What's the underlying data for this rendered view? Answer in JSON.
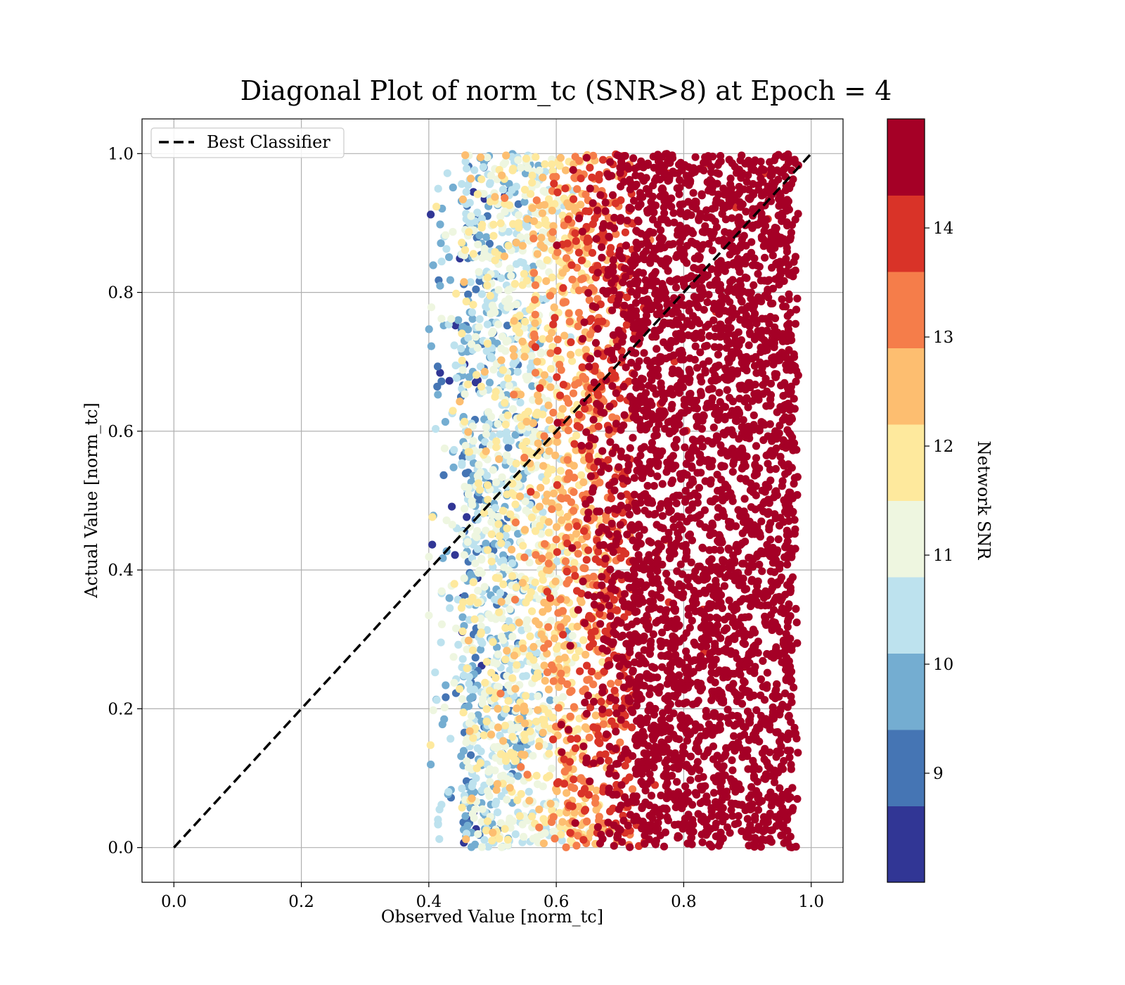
{
  "chart_data": {
    "type": "scatter",
    "title": "Diagonal Plot of norm_tc (SNR>8) at Epoch = 4",
    "xlabel": "Observed Value [norm_tc]",
    "ylabel": "Actual Value [norm_tc]",
    "xlim": [
      -0.05,
      1.05
    ],
    "ylim": [
      -0.05,
      1.05
    ],
    "xticks": [
      "0.0",
      "0.2",
      "0.4",
      "0.6",
      "0.8",
      "1.0"
    ],
    "yticks": [
      "0.0",
      "0.2",
      "0.4",
      "0.6",
      "0.8",
      "1.0"
    ],
    "grid": true,
    "legend": {
      "placement": "upper-left",
      "entries": [
        {
          "label": "Best Classifier",
          "style": "dashed",
          "color": "#000000"
        }
      ]
    },
    "reference_line": {
      "x": [
        0.0,
        1.0
      ],
      "y": [
        0.0,
        1.0
      ]
    },
    "colorbar": {
      "label": "Network SNR",
      "range": [
        8.0,
        15.0
      ],
      "ticks": [
        "9",
        "10",
        "11",
        "12",
        "13",
        "14"
      ],
      "bins": [
        {
          "from": 8.0,
          "to": 8.7,
          "color": "#313695"
        },
        {
          "from": 8.7,
          "to": 9.4,
          "color": "#4575b4"
        },
        {
          "from": 9.4,
          "to": 10.1,
          "color": "#74add1"
        },
        {
          "from": 10.1,
          "to": 10.8,
          "color": "#bde2ee"
        },
        {
          "from": 10.8,
          "to": 11.5,
          "color": "#eef6e0"
        },
        {
          "from": 11.5,
          "to": 12.2,
          "color": "#fee99d"
        },
        {
          "from": 12.2,
          "to": 12.9,
          "color": "#fdbe70"
        },
        {
          "from": 12.9,
          "to": 13.6,
          "color": "#f57d4a"
        },
        {
          "from": 13.6,
          "to": 14.3,
          "color": "#d93328"
        },
        {
          "from": 14.3,
          "to": 15.0,
          "color": "#a50026"
        }
      ]
    },
    "point_distribution": {
      "x_range": [
        0.4,
        0.98
      ],
      "y_range": [
        0.0,
        1.0
      ],
      "point_count": 6000,
      "snr_by_x": [
        {
          "x": 0.45,
          "snr": 10.2
        },
        {
          "x": 0.55,
          "snr": 11.0
        },
        {
          "x": 0.62,
          "snr": 12.6
        },
        {
          "x": 0.7,
          "snr": 14.3
        },
        {
          "x": 0.85,
          "snr": 15.0
        },
        {
          "x": 0.98,
          "snr": 15.0
        }
      ]
    }
  }
}
